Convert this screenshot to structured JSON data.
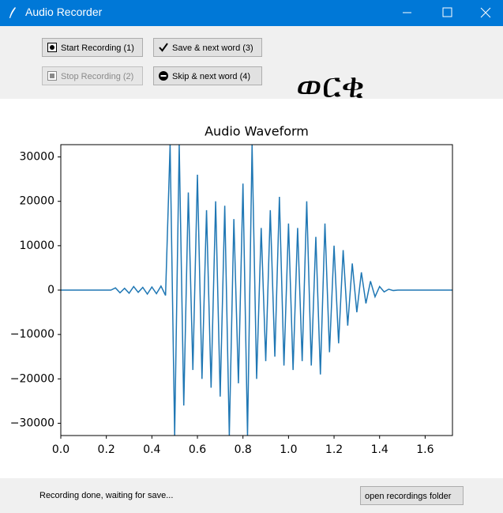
{
  "window": {
    "title": "Audio Recorder"
  },
  "buttons": {
    "start": "Start Recording (1)",
    "stop": "Stop Recording (2)",
    "save": "Save & next word (3)",
    "skip": "Skip & next word (4)"
  },
  "word": "ወርቂ",
  "status": "Recording done, waiting for save...",
  "open_folder_button": "open recordings folder",
  "chart_data": {
    "type": "line",
    "title": "Audio Waveform",
    "x": [
      0.0,
      0.02,
      0.04,
      0.06,
      0.08,
      0.1,
      0.12,
      0.14,
      0.16,
      0.18,
      0.2,
      0.22,
      0.24,
      0.26,
      0.28,
      0.3,
      0.32,
      0.34,
      0.36,
      0.38,
      0.4,
      0.42,
      0.44,
      0.46,
      0.48,
      0.5,
      0.52,
      0.54,
      0.56,
      0.58,
      0.6,
      0.62,
      0.64,
      0.66,
      0.68,
      0.7,
      0.72,
      0.74,
      0.76,
      0.78,
      0.8,
      0.82,
      0.84,
      0.86,
      0.88,
      0.9,
      0.92,
      0.94,
      0.96,
      0.98,
      1.0,
      1.02,
      1.04,
      1.06,
      1.08,
      1.1,
      1.12,
      1.14,
      1.16,
      1.18,
      1.2,
      1.22,
      1.24,
      1.26,
      1.28,
      1.3,
      1.32,
      1.34,
      1.36,
      1.38,
      1.4,
      1.42,
      1.44,
      1.46,
      1.48,
      1.5,
      1.52,
      1.54,
      1.56,
      1.58,
      1.6,
      1.62,
      1.64,
      1.66,
      1.68,
      1.7,
      1.72
    ],
    "series": [
      {
        "color": "#1f77b4",
        "values": [
          0,
          0,
          0,
          0,
          0,
          0,
          0,
          0,
          0,
          0,
          0,
          0,
          500,
          -600,
          400,
          -700,
          800,
          -500,
          600,
          -900,
          700,
          -800,
          900,
          -1200,
          32767,
          -32768,
          32767,
          -26000,
          22000,
          -18000,
          26000,
          -20000,
          18000,
          -22000,
          20000,
          -24000,
          19000,
          -32768,
          16000,
          -21000,
          24000,
          -32768,
          32767,
          -20000,
          14000,
          -16000,
          18000,
          -15000,
          21000,
          -17000,
          15000,
          -18000,
          14000,
          -16000,
          20000,
          -17000,
          12000,
          -19000,
          15000,
          -14000,
          10000,
          -12000,
          9000,
          -8000,
          6000,
          -5000,
          4000,
          -3000,
          2000,
          -1500,
          800,
          -400,
          200,
          -100,
          0,
          0,
          0,
          0,
          0,
          0,
          0,
          0,
          0,
          0,
          0,
          0,
          0
        ]
      }
    ],
    "xlim": [
      0,
      1.72
    ],
    "ylim": [
      -32768,
      32767
    ],
    "xticks": [
      {
        "value": 0,
        "label": "0.0"
      },
      0.2,
      0.4,
      0.6,
      0.8,
      {
        "value": 1,
        "label": "1.0"
      },
      1.2,
      1.4,
      1.6
    ],
    "yticks": [
      {
        "value": -30000,
        "label": "−30000"
      },
      {
        "value": -20000,
        "label": "−20000"
      },
      {
        "value": -10000,
        "label": "−10000"
      },
      0,
      10000,
      20000,
      30000
    ]
  }
}
